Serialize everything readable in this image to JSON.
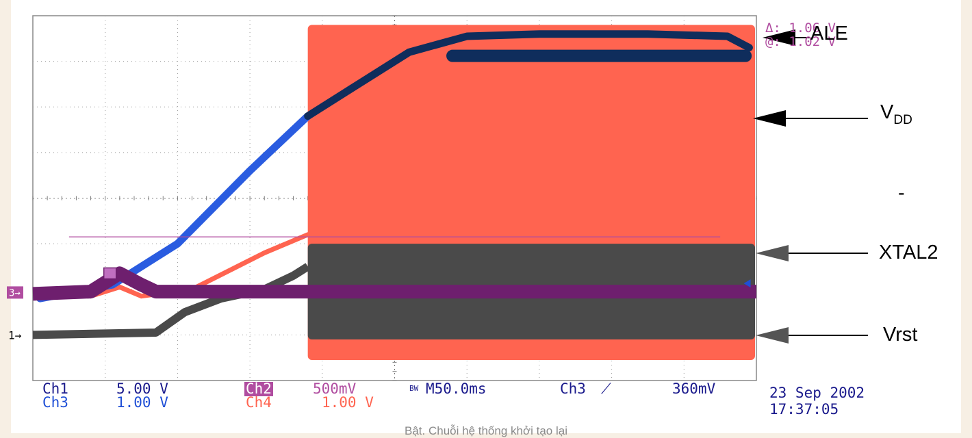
{
  "chart_data": {
    "type": "line",
    "title": "",
    "time_per_div": "M50.0ms",
    "grid": true,
    "divisions": {
      "x": 10,
      "y": 8
    },
    "ground_markers": {
      "ch1": "1",
      "ch3": "3"
    },
    "series": [
      {
        "name": "ALE",
        "channel": "Ch1",
        "scale": "5.00 V",
        "color": "#4a4a4a",
        "kind": "band",
        "points": [
          [
            0.0,
            1.0
          ],
          [
            1.7,
            1.05
          ],
          [
            2.1,
            1.5
          ],
          [
            2.6,
            1.8
          ],
          [
            3.2,
            2.0
          ],
          [
            3.6,
            2.3
          ],
          [
            3.8,
            2.5
          ]
        ],
        "burst": {
          "start": 3.8,
          "end": 10.0,
          "top": 3.0,
          "bottom": 0.9
        }
      },
      {
        "name": "VDD",
        "channel": "Ch3",
        "scale": "1.00 V",
        "color": "#1f4fd6",
        "points": [
          [
            0.1,
            1.8
          ],
          [
            1.1,
            2.1
          ],
          [
            2.0,
            3.0
          ],
          [
            3.0,
            4.6
          ],
          [
            3.8,
            5.8
          ],
          [
            4.5,
            6.5
          ],
          [
            5.2,
            7.2
          ],
          [
            6.0,
            7.55
          ],
          [
            7.0,
            7.6
          ],
          [
            8.5,
            7.6
          ],
          [
            9.6,
            7.55
          ],
          [
            9.9,
            7.3
          ]
        ]
      },
      {
        "name": "XTAL2",
        "channel": "Ch4",
        "scale": "1.00 V",
        "color": "#ff6450",
        "points": [
          [
            0.8,
            1.85
          ],
          [
            1.2,
            2.05
          ],
          [
            1.5,
            1.85
          ],
          [
            2.2,
            2.0
          ],
          [
            2.7,
            2.4
          ],
          [
            3.2,
            2.8
          ],
          [
            3.8,
            3.2
          ]
        ],
        "burst": {
          "start": 3.8,
          "end": 10.0,
          "top": 7.8,
          "bottom": 0.45
        }
      },
      {
        "name": "Vrst",
        "channel": "Ch2",
        "scale": "500mV",
        "color": "#6e1f6e",
        "points": [
          [
            0.0,
            1.9
          ],
          [
            0.8,
            1.95
          ],
          [
            1.2,
            2.35
          ],
          [
            1.5,
            2.1
          ],
          [
            1.7,
            1.95
          ],
          [
            10.0,
            1.95
          ]
        ]
      }
    ],
    "trigger_level": {
      "channel": "Ch3",
      "level": "360mV",
      "y_div": 3.15,
      "x_start": 0.5,
      "x_end": 9.5
    }
  },
  "labels": {
    "ale": "ALE",
    "vdd_main": "V",
    "vdd_sub": "DD",
    "dash": "-",
    "xtal2": "XTAL2",
    "vrst": "Vrst"
  },
  "measurements": {
    "delta": "Δ: 1.06 V",
    "at": "@: 1.02 V"
  },
  "readout": {
    "ch1": "Ch1",
    "ch1_scale": "5.00 V",
    "ch3": "Ch3",
    "ch3_scale": "1.00 V",
    "ch2": "Ch2",
    "ch2_scale": "500mV",
    "ch4": "Ch4",
    "ch4_scale": "1.00 V",
    "bw": "BW",
    "timebase": "M50.0ms",
    "trig_ch": "Ch3",
    "trig_sym": "⟋",
    "trig_level": "360mV",
    "date": "23 Sep 2002",
    "time": "17:37:05"
  },
  "caption": "Bật. Chuỗi hệ thống khởi tạo lại"
}
